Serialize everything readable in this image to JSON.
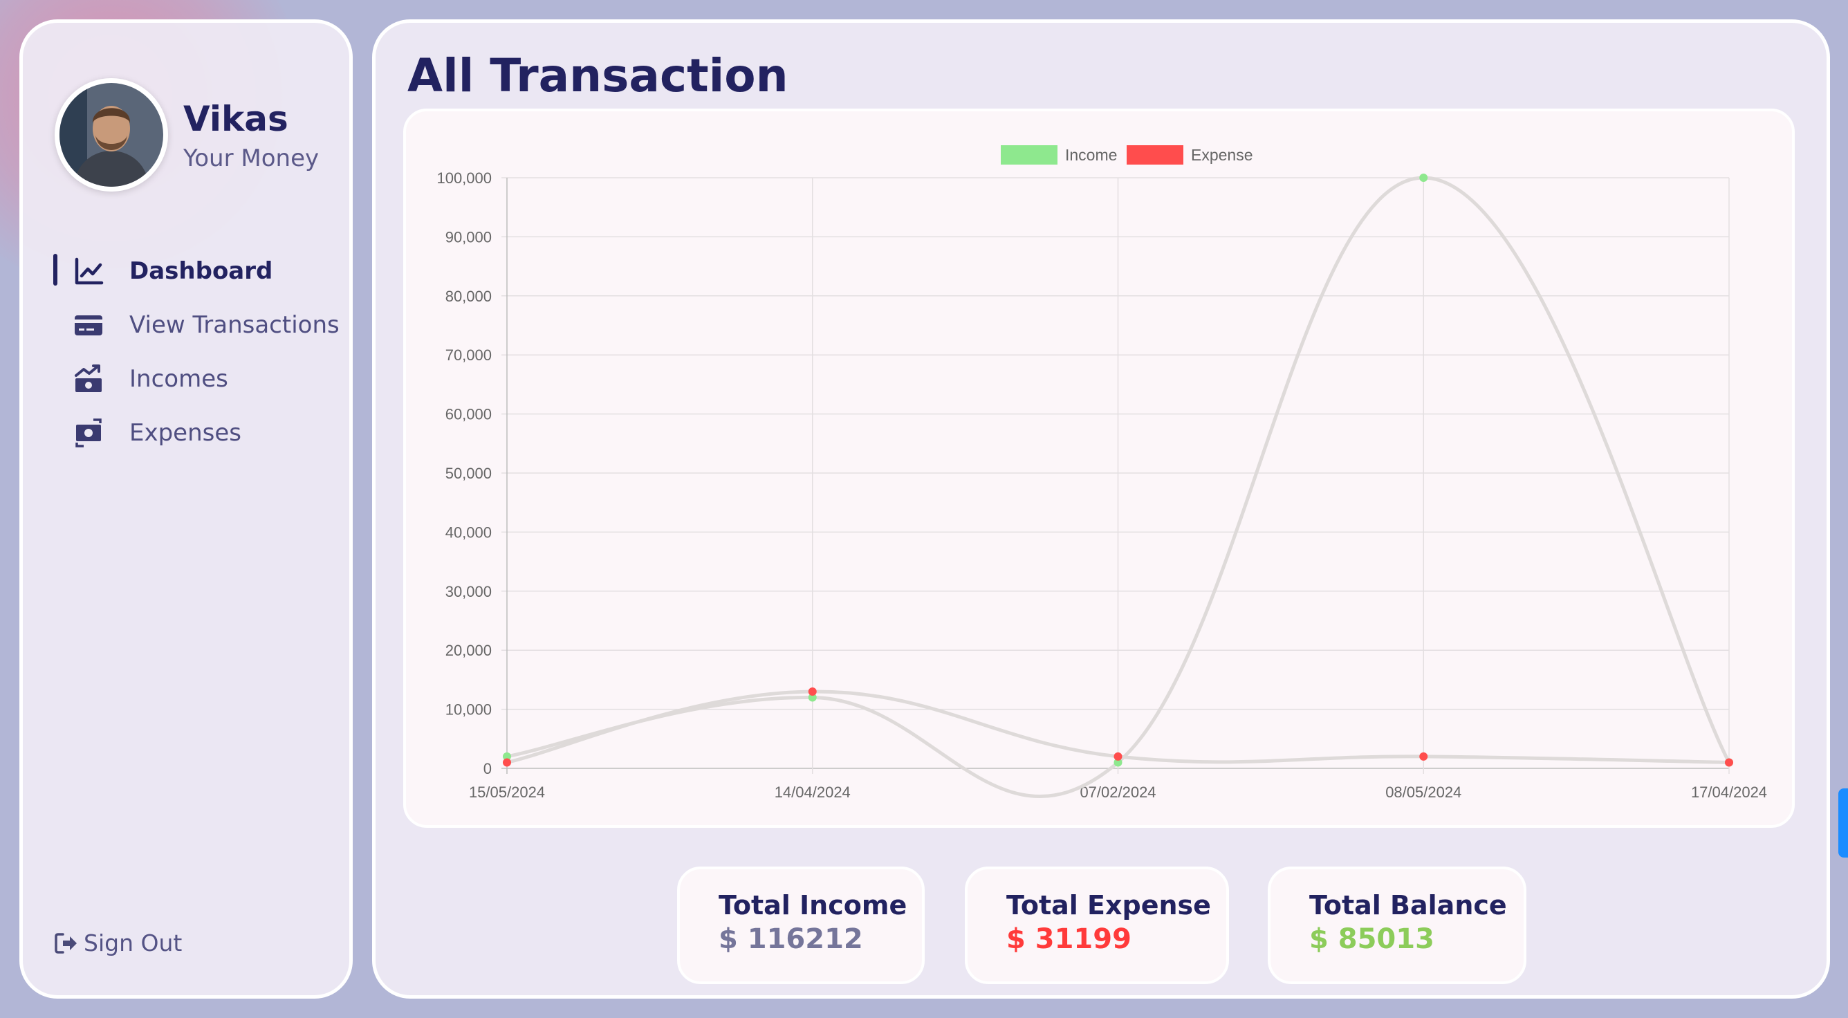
{
  "user": {
    "name": "Vikas",
    "subtitle": "Your Money"
  },
  "menu": [
    {
      "label": "Dashboard",
      "icon": "chart-line-icon",
      "active": true
    },
    {
      "label": "View Transactions",
      "icon": "credit-card-icon",
      "active": false
    },
    {
      "label": "Incomes",
      "icon": "money-bill-trend-up-icon",
      "active": false
    },
    {
      "label": "Expenses",
      "icon": "money-bill-transfer-icon",
      "active": false
    }
  ],
  "signout_label": "Sign Out",
  "page_title": "All Transaction",
  "chart_data": {
    "type": "line",
    "categories": [
      "15/05/2024",
      "14/04/2024",
      "07/02/2024",
      "08/05/2024",
      "17/04/2024"
    ],
    "series": [
      {
        "name": "Income",
        "values": [
          2000,
          12000,
          1000,
          100000,
          1000
        ],
        "color": "#8ee88e"
      },
      {
        "name": "Expense",
        "values": [
          1000,
          13000,
          2000,
          2000,
          1000
        ],
        "color": "#ff4d4d"
      }
    ],
    "ylim": [
      0,
      100000
    ],
    "yticks": [
      "0",
      "10,000",
      "20,000",
      "30,000",
      "40,000",
      "50,000",
      "60,000",
      "70,000",
      "80,000",
      "90,000",
      "100,000"
    ],
    "grid": true,
    "legend": "top-center",
    "line_color": "#dedad9"
  },
  "stats": {
    "income": {
      "title": "Total Income",
      "value": "$ 116212",
      "color": "#75759a"
    },
    "expense": {
      "title": "Total Expense",
      "value": "$ 31199",
      "color": "#ff3a3a"
    },
    "balance": {
      "title": "Total Balance",
      "value": "$ 85013",
      "color": "#8ccc5a"
    }
  },
  "colors": {
    "accent": "#222260",
    "scroll": "#1a8cff"
  }
}
